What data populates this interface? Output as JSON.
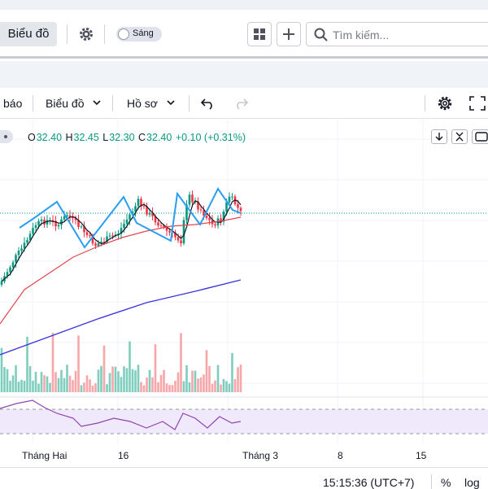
{
  "topbar": {
    "chart_button": "Biểu đồ",
    "theme_toggle": "Sáng",
    "search_placeholder": "Tìm kiếm..."
  },
  "toolbar": {
    "alerts_partial": "báo",
    "chart_menu": "Biểu đồ",
    "profile_menu": "Hồ sơ"
  },
  "legend": {
    "open_k": "O",
    "open": "32.40",
    "high_k": "H",
    "high": "32.45",
    "low_k": "L",
    "low": "32.30",
    "close_k": "C",
    "close": "32.40",
    "change": "+0.10 (+0.31%)"
  },
  "x_axis": {
    "labels": [
      "Tháng Hai",
      "16",
      "Tháng 3",
      "8",
      "15"
    ]
  },
  "status": {
    "time": "15:15:36 (UTC+7)",
    "percent": "%",
    "log": "log"
  },
  "colors": {
    "up": "#089981",
    "down": "#f23645",
    "ma_fast": "#131722",
    "ma_mid": "#e0484f",
    "ma_slow": "#3c35e0",
    "zigzag": "#2a9df4",
    "rsi": "#8e44ad"
  },
  "chart_data": {
    "type": "candlestick",
    "title": "",
    "last_price": 32.4,
    "ohlc_last": {
      "open": 32.4,
      "high": 32.45,
      "low": 32.3,
      "close": 32.4
    },
    "x_labels": [
      "Tháng Hai",
      "16",
      "Tháng 3",
      "8",
      "15"
    ],
    "indicators": [
      "ma-fast",
      "ma-mid",
      "ma-slow",
      "zigzag",
      "volume",
      "rsi"
    ]
  }
}
